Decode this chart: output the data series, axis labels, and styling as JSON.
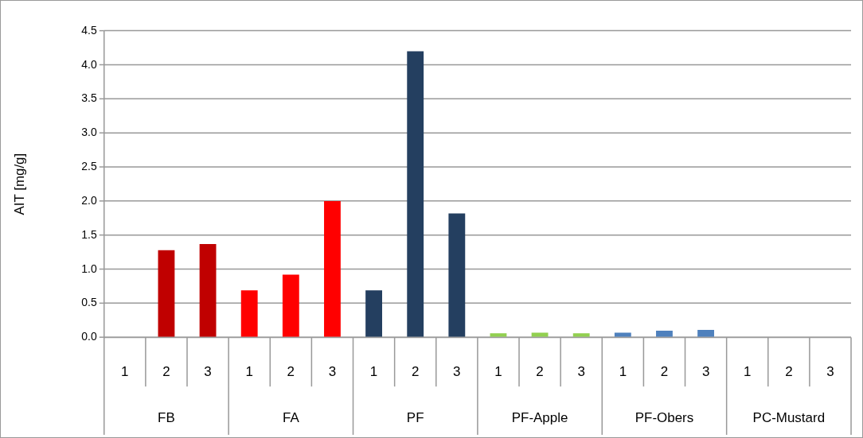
{
  "chart_data": {
    "type": "bar",
    "ylabel": "AIT [mg/g]",
    "categories": [
      "1",
      "2",
      "3",
      "1",
      "2",
      "3",
      "1",
      "2",
      "3",
      "1",
      "2",
      "3",
      "1",
      "2",
      "3",
      "1",
      "2",
      "3"
    ],
    "values": [
      0,
      1.28,
      1.37,
      0.69,
      0.92,
      2.0,
      0.69,
      4.2,
      1.82,
      0.06,
      0.07,
      0.06,
      0.07,
      0.1,
      0.11,
      0,
      0,
      0
    ],
    "colors": [
      "#c00000",
      "#c00000",
      "#c00000",
      "#ff0000",
      "#ff0000",
      "#ff0000",
      "#243f60",
      "#243f60",
      "#243f60",
      "#92d050",
      "#92d050",
      "#92d050",
      "#4f81bd",
      "#4f81bd",
      "#4f81bd",
      "#4f81bd",
      "#4f81bd",
      "#4f81bd"
    ],
    "annotations": [
      "FB",
      "FA",
      "PF",
      "PF-Apple",
      "PF-Obers",
      "PC-Mustard"
    ],
    "ylim": [
      0,
      4.5
    ],
    "yticks": [
      {
        "value": 0,
        "label": "0.0"
      },
      0.5,
      {
        "value": 1,
        "label": "1.0"
      },
      1.5,
      {
        "value": 2,
        "label": "2.0"
      },
      2.5,
      {
        "value": 3,
        "label": "3.0"
      },
      3.5,
      {
        "value": 4,
        "label": "4.0"
      },
      4.5
    ],
    "grid": "y",
    "legend": false
  }
}
